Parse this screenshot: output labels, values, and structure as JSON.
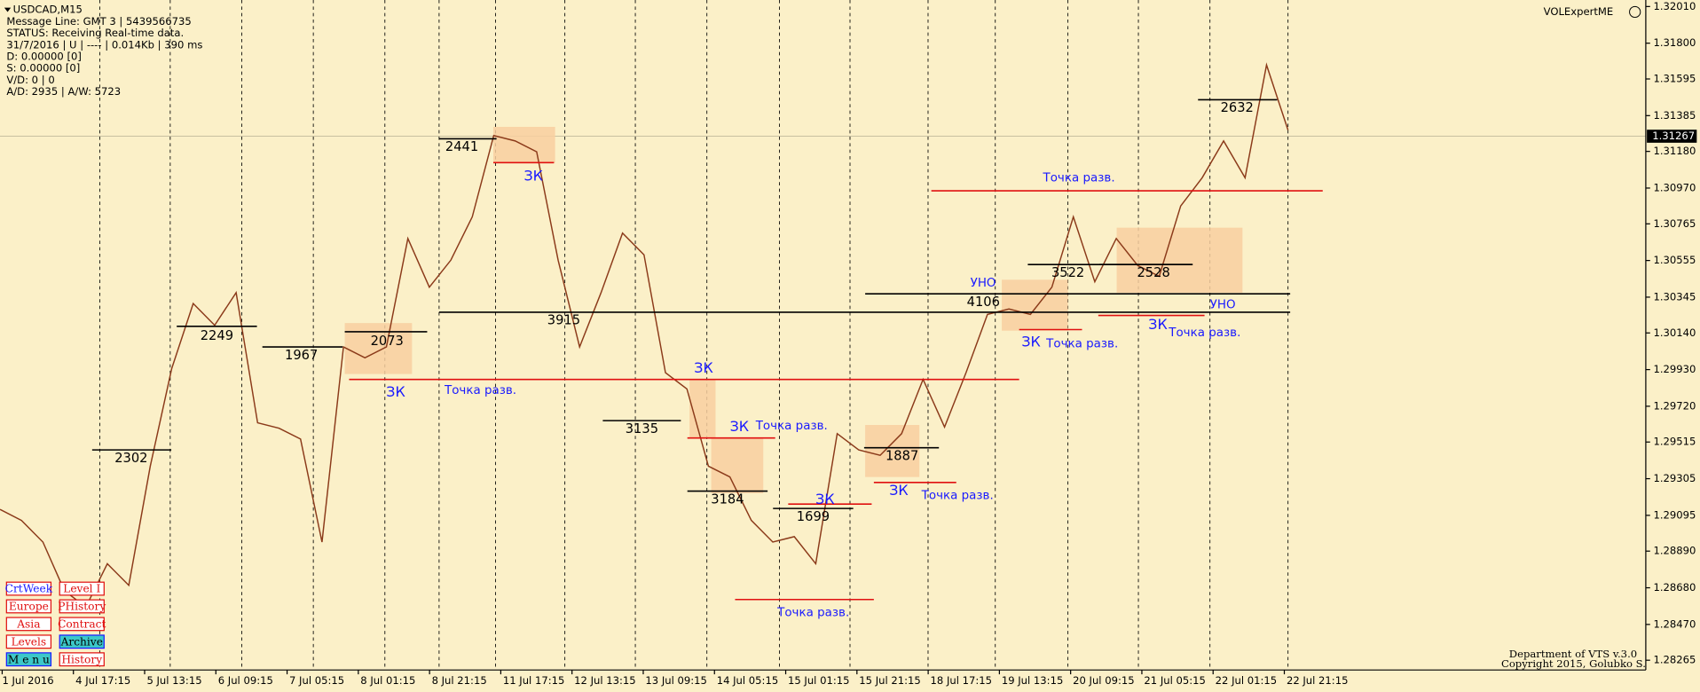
{
  "info": {
    "symbol": "USDCAD,M15",
    "lines": [
      "Message Line: GMT 3 | 5439566735",
      "STATUS:  Receiving Real-time data.",
      "31/7/2016 | U | ---- | 0.014Kb | 390 ms",
      "D: 0.00000  [0]",
      "S: 0.00000  [0]",
      "V/D: 0 | 0",
      "A/D: 2935 | A/W: 5723"
    ]
  },
  "indicator": "VOLExpertME",
  "footer": [
    "Department of VTS  v.3.0",
    "Copyright 2015, Golubko S."
  ],
  "time_axis": [
    "1 Jul 2016",
    "4 Jul 17:15",
    "5 Jul 13:15",
    "6 Jul 09:15",
    "7 Jul 05:15",
    "8 Jul 01:15",
    "8 Jul 21:15",
    "11 Jul 17:15",
    "12 Jul 13:15",
    "13 Jul 09:15",
    "14 Jul 05:15",
    "15 Jul 01:15",
    "15 Jul 21:15",
    "18 Jul 17:15",
    "19 Jul 13:15",
    "20 Jul 09:15",
    "21 Jul 05:15",
    "22 Jul 01:15",
    "22 Jul 21:15"
  ],
  "buttons": [
    "CrtWeek",
    "Level I",
    "Europe",
    "PHistory",
    "Asia",
    "Contract",
    "Levels",
    "Archive",
    "M e n u",
    "History"
  ],
  "annotations": {
    "levels": [
      "2302",
      "2249",
      "1967",
      "2073",
      "2441",
      "3915",
      "3135",
      "3184",
      "1699",
      "1887",
      "4106",
      "3522",
      "2528",
      "2632"
    ],
    "zk_labels": [
      "ЗК",
      "ЗК",
      "ЗК",
      "ЗК",
      "ЗК",
      "ЗК",
      "ЗК",
      "ЗК"
    ],
    "point_labels": [
      "Точка разв.",
      "Точка разв.",
      "Точка разв.",
      "Точка разв.",
      "Точка разв.",
      "Точка разв.",
      "Точка разв."
    ],
    "uno_labels": [
      "УНО",
      "УНО"
    ]
  },
  "chart_data": {
    "type": "line",
    "color": "#8b3a1a",
    "values": [
      1.29129,
      1.29066,
      1.28942,
      1.28663,
      1.2857,
      1.28818,
      1.28694,
      1.29377,
      1.29936,
      1.30308,
      1.30184,
      1.30371,
      1.29625,
      1.29594,
      1.29532,
      1.28942,
      1.3006,
      1.29998,
      1.3006,
      1.30681,
      1.30402,
      1.30557,
      1.30805,
      1.31271,
      1.3124,
      1.31178,
      1.30557,
      1.3006,
      1.30371,
      1.30712,
      1.30588,
      1.29912,
      1.29819,
      1.29377,
      1.29315,
      1.29066,
      1.28942,
      1.28973,
      1.28818,
      1.29563,
      1.2947,
      1.29439,
      1.29563,
      1.29874,
      1.29601,
      1.29912,
      1.30246,
      1.30277,
      1.30246,
      1.30402,
      1.30805,
      1.30433,
      1.30681,
      1.30526,
      1.30464,
      1.30867,
      1.31029,
      1.3124,
      1.31029,
      1.31675,
      1.31302
    ],
    "ylim": [
      1.28265,
      1.3201
    ],
    "yticks": [
      {
        "value": 1.3201,
        "label": "1.32010"
      },
      {
        "value": 1.318,
        "label": "1.31800"
      },
      {
        "value": 1.31595,
        "label": "1.31595"
      },
      {
        "value": 1.31385,
        "label": "1.31385"
      },
      {
        "value": 1.3118,
        "label": "1.31180"
      },
      {
        "value": 1.3097,
        "label": "1.30970"
      },
      {
        "value": 1.30765,
        "label": "1.30765"
      },
      {
        "value": 1.30555,
        "label": "1.30555"
      },
      {
        "value": 1.30345,
        "label": "1.30345"
      },
      {
        "value": 1.3014,
        "label": "1.30140"
      },
      {
        "value": 1.2993,
        "label": "1.29930"
      },
      {
        "value": 1.2972,
        "label": "1.29720"
      },
      {
        "value": 1.29515,
        "label": "1.29515"
      },
      {
        "value": 1.29305,
        "label": "1.29305"
      },
      {
        "value": 1.29095,
        "label": "1.29095"
      },
      {
        "value": 1.2889,
        "label": "1.28890"
      },
      {
        "value": 1.2868,
        "label": "1.28680"
      },
      {
        "value": 1.2847,
        "label": "1.28470"
      },
      {
        "value": 1.28265,
        "label": "1.28265"
      }
    ],
    "current_price": {
      "value": 1.31267,
      "label": "1.31267"
    }
  }
}
